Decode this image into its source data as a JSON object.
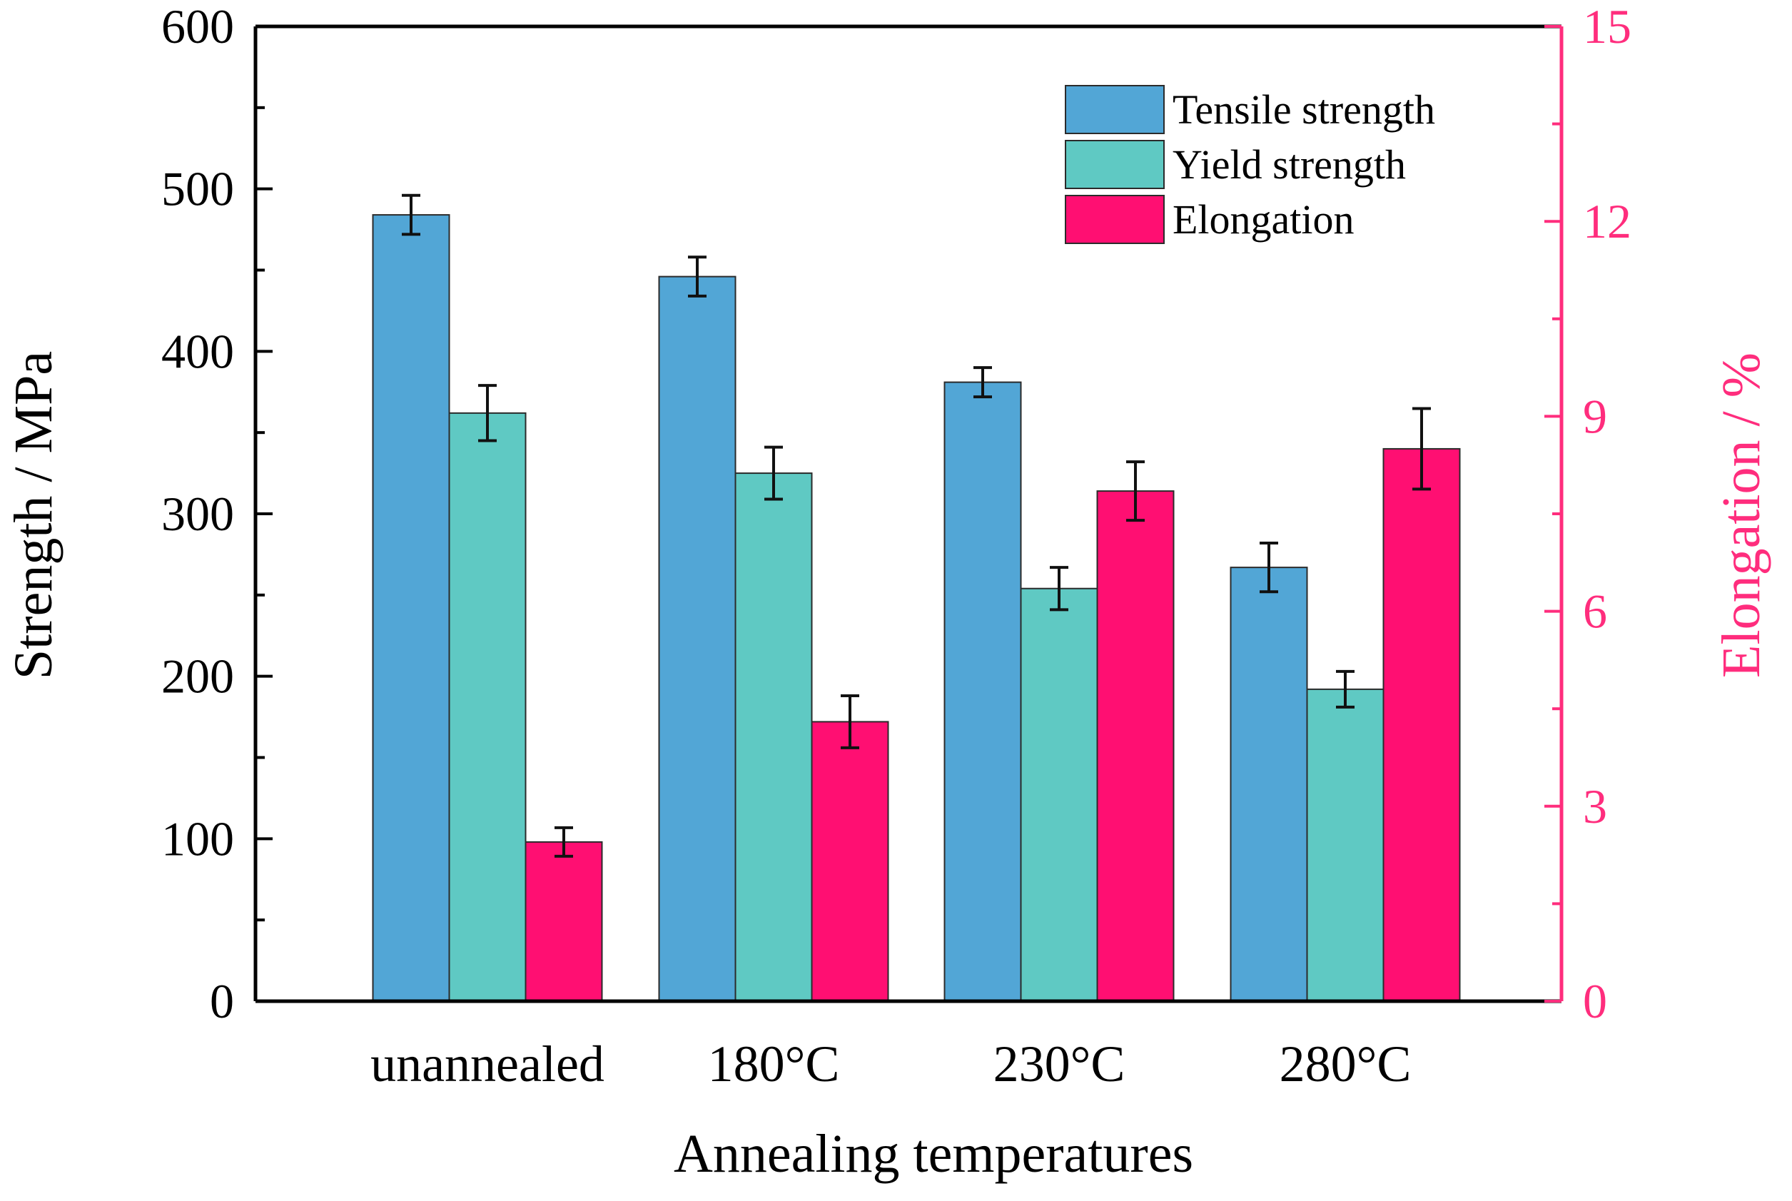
{
  "chart_data": {
    "type": "bar",
    "categories": [
      "unannealed",
      "180°C",
      "230°C",
      "280°C"
    ],
    "xlabel": "Annealing temperatures",
    "ylabel_left": "Strength / MPa",
    "ylabel_right": "Elongation / %",
    "ylim_left": [
      0,
      600
    ],
    "ylim_right": [
      0,
      15
    ],
    "yticks_left": [
      "0",
      "100",
      "200",
      "300",
      "400",
      "500",
      "600"
    ],
    "yticks_right": [
      "0",
      "3",
      "6",
      "9",
      "12",
      "15"
    ],
    "grid": false,
    "legend_position": "top-right",
    "series": [
      {
        "name": "Tensile strength",
        "axis": "left",
        "color": "#52a6d6",
        "values": [
          484,
          446,
          381,
          267
        ],
        "errors": [
          12,
          12,
          9,
          15
        ]
      },
      {
        "name": "Yield strength",
        "axis": "left",
        "color": "#5fc9c3",
        "values": [
          362,
          325,
          254,
          192
        ],
        "errors": [
          17,
          16,
          13,
          11
        ]
      },
      {
        "name": "Elongation",
        "axis": "right",
        "color": "#ff0f72",
        "values": [
          2.45,
          4.3,
          7.85,
          8.5
        ],
        "errors": [
          0.22,
          0.4,
          0.45,
          0.62
        ]
      }
    ],
    "right_axis_color": "#ff2d7d"
  }
}
